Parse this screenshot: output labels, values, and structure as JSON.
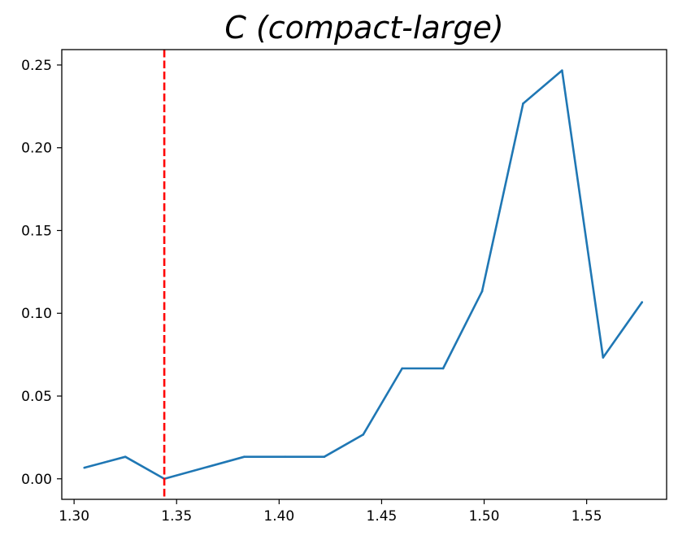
{
  "chart_data": {
    "type": "line",
    "title": "C (compact-large)",
    "xlabel": "",
    "ylabel": "",
    "xlim": [
      1.294,
      1.589
    ],
    "ylim": [
      -0.0124,
      0.2593
    ],
    "x_ticks": [
      1.3,
      1.35,
      1.4,
      1.45,
      1.5,
      1.55
    ],
    "x_tick_labels": [
      "1.30",
      "1.35",
      "1.40",
      "1.45",
      "1.50",
      "1.55"
    ],
    "y_ticks": [
      0.0,
      0.05,
      0.1,
      0.15,
      0.2,
      0.25
    ],
    "y_tick_labels": [
      "0.00",
      "0.05",
      "0.10",
      "0.15",
      "0.20",
      "0.25"
    ],
    "grid": false,
    "series": [
      {
        "color": "#1f77b4",
        "x": [
          1.305,
          1.325,
          1.344,
          1.383,
          1.403,
          1.422,
          1.441,
          1.46,
          1.48,
          1.499,
          1.519,
          1.538,
          1.558,
          1.577
        ],
        "y": [
          0.0067,
          0.0133,
          0.0,
          0.0133,
          0.0133,
          0.0133,
          0.0267,
          0.0667,
          0.0667,
          0.1133,
          0.2267,
          0.2467,
          0.0733,
          0.1067
        ]
      }
    ],
    "reference_lines": [
      {
        "orientation": "vertical",
        "x": 1.344,
        "style": "dashed",
        "color": "#ff0000"
      }
    ]
  }
}
